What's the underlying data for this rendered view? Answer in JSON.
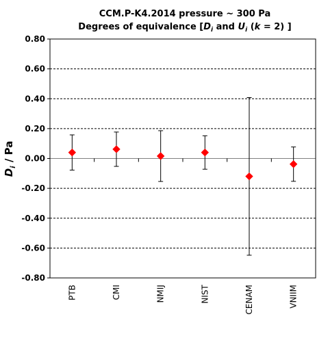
{
  "chart_data": {
    "type": "scatter",
    "title_line1": "CCM.P-K4.2014  pressure ~ 300 Pa",
    "title_line2_parts": {
      "pre": "Degrees of equivalence [",
      "d_sym": "D",
      "d_sub": "i",
      "mid": " and ",
      "u_sym": "U",
      "u_sub": "i",
      "open": " (",
      "k_sym": "k",
      "post": " = 2) ]"
    },
    "ylabel_parts": {
      "sym": "D",
      "sub": "i",
      "unit": " / Pa"
    },
    "ylim": [
      -0.8,
      0.8
    ],
    "yticks": [
      0.8,
      0.6,
      0.4,
      0.2,
      0.0,
      -0.2,
      -0.4,
      -0.6,
      -0.8
    ],
    "ytick_labels": [
      "0.80",
      "0.60",
      "0.40",
      "0.20",
      "0.00",
      "-0.20",
      "-0.40",
      "-0.60",
      "-0.80"
    ],
    "grid": "horizontal dashed",
    "categories": [
      "PTB",
      "CMI",
      "NMIJ",
      "NIST",
      "CENAM",
      "VNIIM"
    ],
    "values": [
      0.04,
      0.062,
      0.016,
      0.04,
      -0.12,
      -0.038
    ],
    "uncertainties": [
      0.118,
      0.115,
      0.17,
      0.112,
      0.528,
      0.115
    ],
    "marker_color": "#ff0000",
    "errorbar_color": "#000000"
  }
}
